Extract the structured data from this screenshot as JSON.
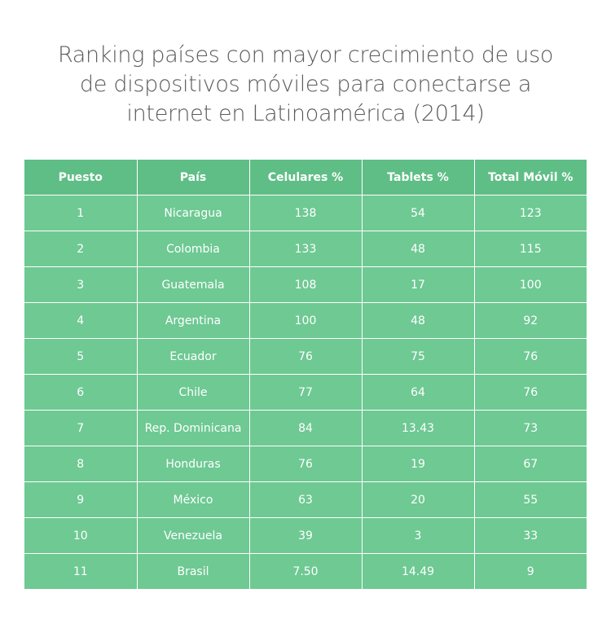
{
  "colors": {
    "header_background": "#5fbe86",
    "row_background": "#6ec993",
    "cell_text": "#ffffff",
    "title_text": "#5b5b5b"
  },
  "chart_data": {
    "type": "table",
    "title_lines": [
      "Ranking países con mayor crecimiento de uso",
      "de dispositivos móviles para conectarse a",
      "internet en Latinoamérica (2014)"
    ],
    "columns": [
      "Puesto",
      "País",
      "Celulares %",
      "Tablets %",
      "Total Móvil %"
    ],
    "rows": [
      [
        "1",
        "Nicaragua",
        "138",
        "54",
        "123"
      ],
      [
        "2",
        "Colombia",
        "133",
        "48",
        "115"
      ],
      [
        "3",
        "Guatemala",
        "108",
        "17",
        "100"
      ],
      [
        "4",
        "Argentina",
        "100",
        "48",
        "92"
      ],
      [
        "5",
        "Ecuador",
        "76",
        "75",
        "76"
      ],
      [
        "6",
        "Chile",
        "77",
        "64",
        "76"
      ],
      [
        "7",
        "Rep. Dominicana",
        "84",
        "13.43",
        "73"
      ],
      [
        "8",
        "Honduras",
        "76",
        "19",
        "67"
      ],
      [
        "9",
        "México",
        "63",
        "20",
        "55"
      ],
      [
        "10",
        "Venezuela",
        "39",
        "3",
        "33"
      ],
      [
        "11",
        "Brasil",
        "7.50",
        "14.49",
        "9"
      ]
    ]
  }
}
